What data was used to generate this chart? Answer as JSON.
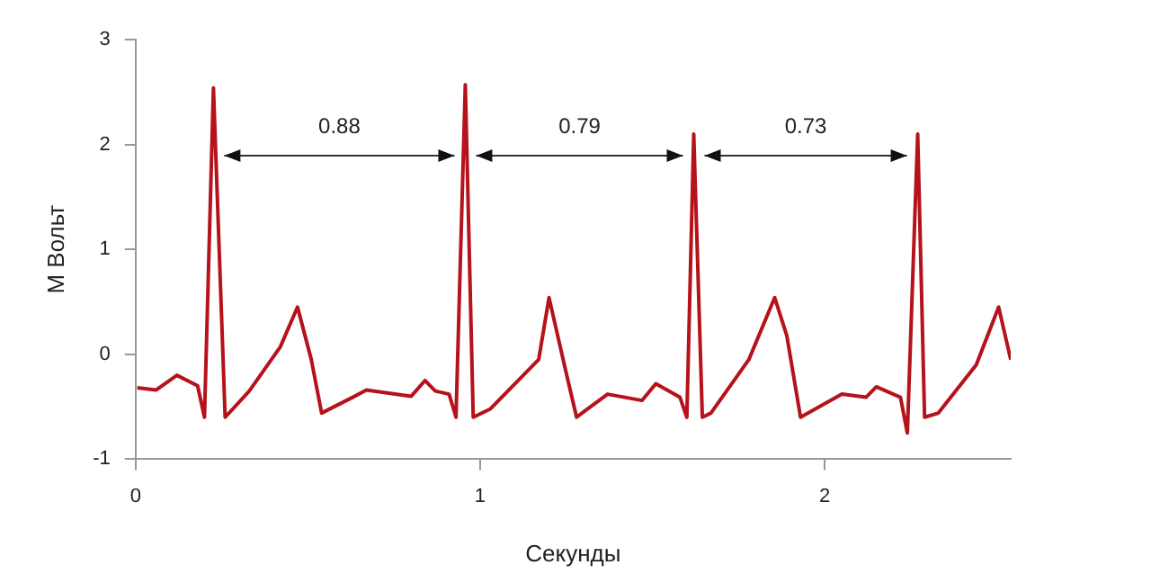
{
  "chart_data": {
    "type": "line",
    "xlabel": "Секунды",
    "ylabel": "М Вольт",
    "x": [
      0.005,
      0.06,
      0.12,
      0.18,
      0.2,
      0.226,
      0.26,
      0.33,
      0.42,
      0.47,
      0.51,
      0.54,
      0.63,
      0.67,
      0.8,
      0.84,
      0.87,
      0.91,
      0.93,
      0.957,
      0.98,
      1.03,
      1.17,
      1.2,
      1.25,
      1.28,
      1.3,
      1.37,
      1.47,
      1.51,
      1.58,
      1.6,
      1.62,
      1.645,
      1.67,
      1.78,
      1.855,
      1.89,
      1.93,
      2.05,
      2.12,
      2.15,
      2.22,
      2.24,
      2.27,
      2.29,
      2.33,
      2.44,
      2.505,
      2.54
    ],
    "series": [
      {
        "color": "#b5121b",
        "values": [
          -0.32,
          -0.34,
          -0.2,
          -0.3,
          -0.6,
          2.54,
          -0.6,
          -0.35,
          0.07,
          0.45,
          -0.05,
          -0.56,
          -0.41,
          -0.34,
          -0.4,
          -0.25,
          -0.35,
          -0.38,
          -0.6,
          2.57,
          -0.6,
          -0.52,
          -0.05,
          0.54,
          -0.18,
          -0.6,
          -0.55,
          -0.38,
          -0.44,
          -0.28,
          -0.41,
          -0.6,
          2.1,
          -0.6,
          -0.56,
          -0.05,
          0.54,
          0.18,
          -0.6,
          -0.38,
          -0.41,
          -0.31,
          -0.41,
          -0.75,
          2.1,
          -0.6,
          -0.56,
          -0.1,
          0.45,
          -0.05
        ]
      }
    ],
    "xlim": [
      0,
      2.54
    ],
    "xticks": [
      0,
      1,
      2
    ],
    "ylim": [
      -1,
      3
    ],
    "yticks": [
      -1,
      0,
      1,
      2,
      3
    ],
    "grid": false,
    "legend": false,
    "marker": "none",
    "line_style": "solid",
    "annotations": [
      "0.88",
      "0.79",
      "0.73"
    ]
  }
}
